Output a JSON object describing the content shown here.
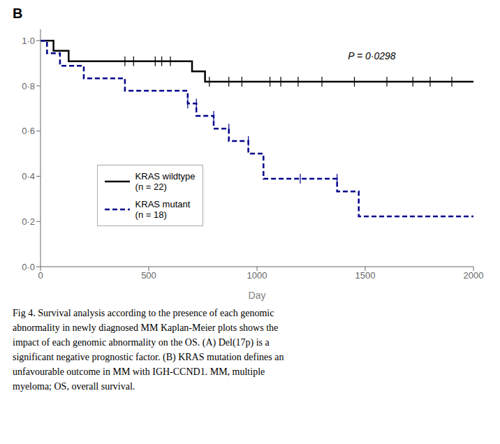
{
  "chart_data": {
    "type": "line",
    "title": "B",
    "xlabel": "Day",
    "xlim": [
      0,
      2000
    ],
    "ylim": [
      0.0,
      1.05
    ],
    "xticks": [
      0,
      500,
      1000,
      1500,
      2000
    ],
    "yticks": [
      {
        "value": 0.0,
        "label": "0·0"
      },
      {
        "value": 0.2,
        "label": "0·2"
      },
      {
        "value": 0.4,
        "label": "0·4"
      },
      {
        "value": 0.6,
        "label": "0·6"
      },
      {
        "value": 0.8,
        "label": "0·8"
      },
      {
        "value": 1.0,
        "label": "1·0"
      }
    ],
    "grid": false,
    "legend": "lower left",
    "series": [
      {
        "name": "KRAS wildtype\n(n = 22)",
        "color": "#000000",
        "line_style": "solid",
        "x": [
          0,
          60,
          60,
          130,
          130,
          700,
          700,
          760,
          760,
          830,
          830,
          2000
        ],
        "values": [
          1.0,
          1.0,
          0.955,
          0.955,
          0.909,
          0.909,
          0.864,
          0.864,
          0.818,
          0.818,
          0.818,
          0.818
        ],
        "censors_x": [
          390,
          430,
          530,
          560,
          600,
          780,
          870,
          930,
          1060,
          1110,
          1190,
          1300,
          1450,
          1600,
          1720,
          1800,
          1900
        ],
        "censors_y": [
          0.909,
          0.909,
          0.909,
          0.909,
          0.909,
          0.818,
          0.818,
          0.818,
          0.818,
          0.818,
          0.818,
          0.818,
          0.818,
          0.818,
          0.818,
          0.818,
          0.818
        ]
      },
      {
        "name": "KRAS mutant\n(n = 18)",
        "color": "#00008B",
        "line_style": "dashed",
        "x": [
          0,
          30,
          30,
          90,
          90,
          200,
          200,
          390,
          390,
          680,
          680,
          720,
          720,
          800,
          800,
          870,
          870,
          960,
          960,
          1030,
          1030,
          1200,
          1200,
          1370,
          1370,
          1470,
          1470,
          1550,
          1550,
          2000
        ],
        "values": [
          1.0,
          1.0,
          0.944,
          0.944,
          0.889,
          0.889,
          0.833,
          0.833,
          0.778,
          0.778,
          0.722,
          0.722,
          0.667,
          0.667,
          0.611,
          0.611,
          0.556,
          0.556,
          0.5,
          0.5,
          0.389,
          0.389,
          0.389,
          0.389,
          0.333,
          0.333,
          0.222,
          0.222,
          0.222,
          0.222
        ],
        "censors_x": [
          680,
          720,
          800,
          870,
          960,
          1200,
          1370
        ],
        "censors_y": [
          0.722,
          0.722,
          0.667,
          0.611,
          0.556,
          0.389,
          0.389
        ]
      }
    ],
    "annotations": [
      {
        "text": "P = 0·0298",
        "x": 1420,
        "y": 0.93
      }
    ],
    "caption": [
      "Fig 4. Survival analysis according to the presence of each genomic",
      "abnormality in newly diagnosed MM Kaplan-Meier plots shows the",
      "impact of each genomic abnormality on the OS. (A) Del(17p) is a",
      "significant negative prognostic factor. (B) KRAS mutation defines an",
      "unfavourable outcome in MM with IGH-CCND1. MM, multiple",
      "myeloma; OS, overall survival."
    ]
  }
}
